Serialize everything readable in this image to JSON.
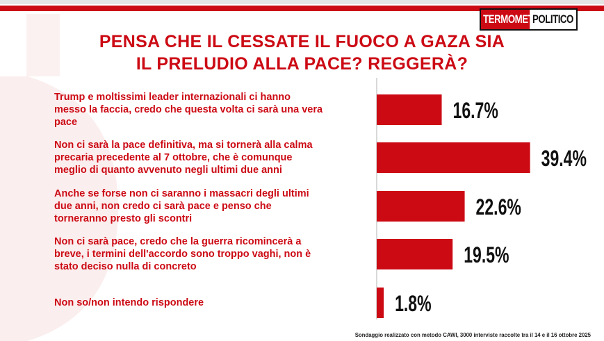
{
  "header": {
    "logo_part1": "TERMOMETRO",
    "logo_part2": "POLITICO",
    "brand_color": "#cc0a14"
  },
  "title_lines": [
    "PENSA CHE IL CESSATE IL FUOCO A GAZA SIA",
    "IL PRELUDIO ALLA PACE? REGGERÀ?"
  ],
  "chart_data": {
    "type": "bar",
    "orientation": "horizontal",
    "categories": [
      [
        "Trump e moltissimi leader internazionali ci hanno",
        "messo la faccia, credo che questa volta ci sarà una vera",
        "pace"
      ],
      [
        "Non ci sarà  la pace definitiva, ma si tornerà  alla calma",
        "precaria precedente al 7 ottobre, che è comunque",
        "meglio di quanto avvenuto negli ultimi due anni"
      ],
      [
        "Anche se forse non ci saranno i massacri degli ultimi",
        "due anni, non credo ci sarà pace e penso che",
        "torneranno presto gli scontri"
      ],
      [
        "Non ci sarà  pace, credo che la guerra ricomincerà a",
        "breve, i termini dell'accordo sono troppo vaghi, non è",
        "stato deciso nulla di concreto"
      ],
      [
        "Non so/non intendo rispondere"
      ]
    ],
    "values": [
      16.7,
      39.4,
      22.6,
      19.5,
      1.8
    ],
    "value_labels": [
      "16.7%",
      "39.4%",
      "22.6%",
      "19.5%",
      "1.8%"
    ],
    "bar_color": "#cc0a14",
    "axis_color": "#bdbdbd",
    "grid": false
  },
  "footer": "Sondaggio realizzato con metodo CAWI, 3000 interviste raccolte tra il 14 e il 16 ottobre  2025"
}
